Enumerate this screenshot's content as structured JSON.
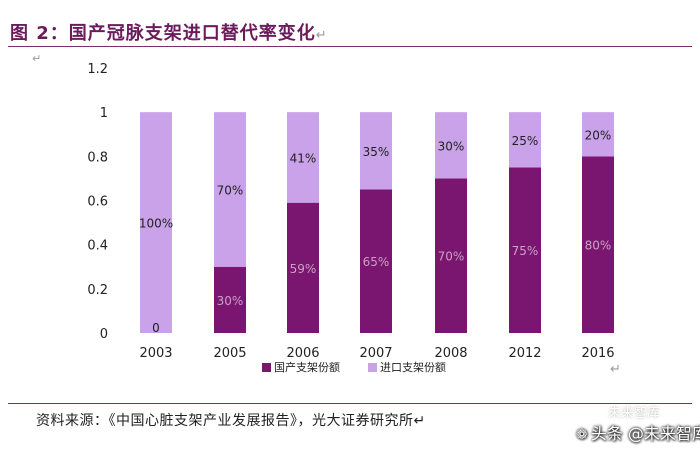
{
  "header": {
    "title": "图 2：国产冠脉支架进口替代率变化",
    "return_mark": "↵"
  },
  "source": {
    "text": "资料来源：《中国心脏支架产业发展报告》，光大证券研究所↵"
  },
  "watermark": {
    "text": "头条 @未来智库",
    "faint_text": "未来智库"
  },
  "colors": {
    "domestic": "#7b1670",
    "imported": "#c9a2ea",
    "title": "#6b1a5c"
  },
  "chart_data": {
    "type": "bar",
    "stacked": true,
    "categories": [
      "2003",
      "2005",
      "2006",
      "2007",
      "2008",
      "2012",
      "2016"
    ],
    "series": [
      {
        "name": "国产支架份额",
        "values": [
          0,
          0.3,
          0.59,
          0.65,
          0.7,
          0.75,
          0.8
        ]
      },
      {
        "name": "进口支架份额",
        "values": [
          1.0,
          0.7,
          0.41,
          0.35,
          0.3,
          0.25,
          0.2
        ]
      }
    ],
    "data_labels": {
      "国产支架份额": [
        "0",
        "30%",
        "59%",
        "65%",
        "70%",
        "75%",
        "80%"
      ],
      "进口支架份额": [
        "100%",
        "70%",
        "41%",
        "35%",
        "30%",
        "25%",
        "20%"
      ]
    },
    "ylim": [
      0,
      1.2
    ],
    "yticks": [
      0,
      0.2,
      0.4,
      0.6,
      0.8,
      1,
      1.2
    ],
    "ytick_labels": [
      "0",
      "0.2",
      "0.4",
      "0.6",
      "0.8",
      "1",
      "1.2"
    ],
    "legend_position": "bottom",
    "grid": false,
    "title": "",
    "xlabel": "",
    "ylabel": ""
  }
}
